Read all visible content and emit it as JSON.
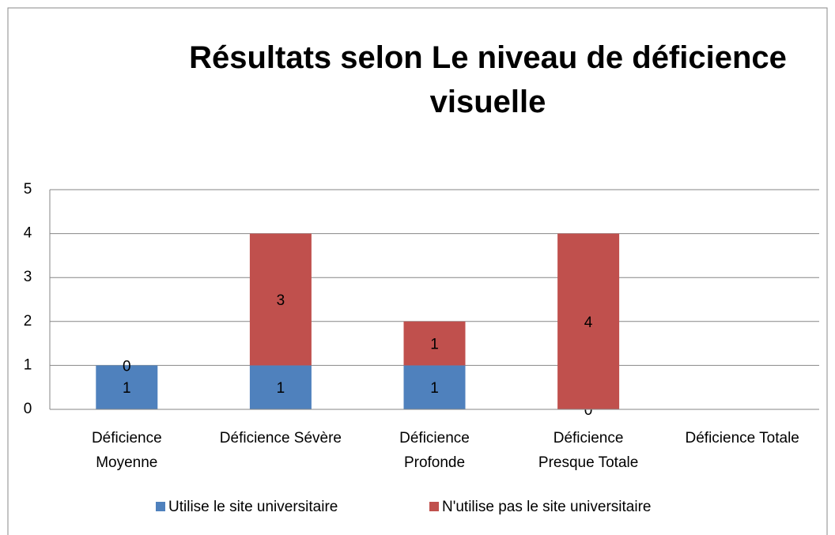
{
  "chart_data": {
    "type": "stacked_bar",
    "title": "Résultats selon Le niveau de déficience visuelle",
    "categories": [
      "Déficience\nMoyenne",
      "Déficience Sévère",
      "Déficience\nProfonde",
      "Déficience\nPresque Totale",
      "Déficience Totale"
    ],
    "series": [
      {
        "name": "Utilise le site universitaire",
        "color": "#4f81bd",
        "values": [
          1,
          1,
          1,
          0,
          null
        ]
      },
      {
        "name": "N'utilise pas le site universitaire",
        "color": "#c0504d",
        "values": [
          0,
          3,
          1,
          4,
          null
        ]
      }
    ],
    "ylim": [
      0,
      5
    ],
    "yticks": [
      0,
      1,
      2,
      3,
      4,
      5
    ],
    "grid": true,
    "legend": "bottom"
  }
}
